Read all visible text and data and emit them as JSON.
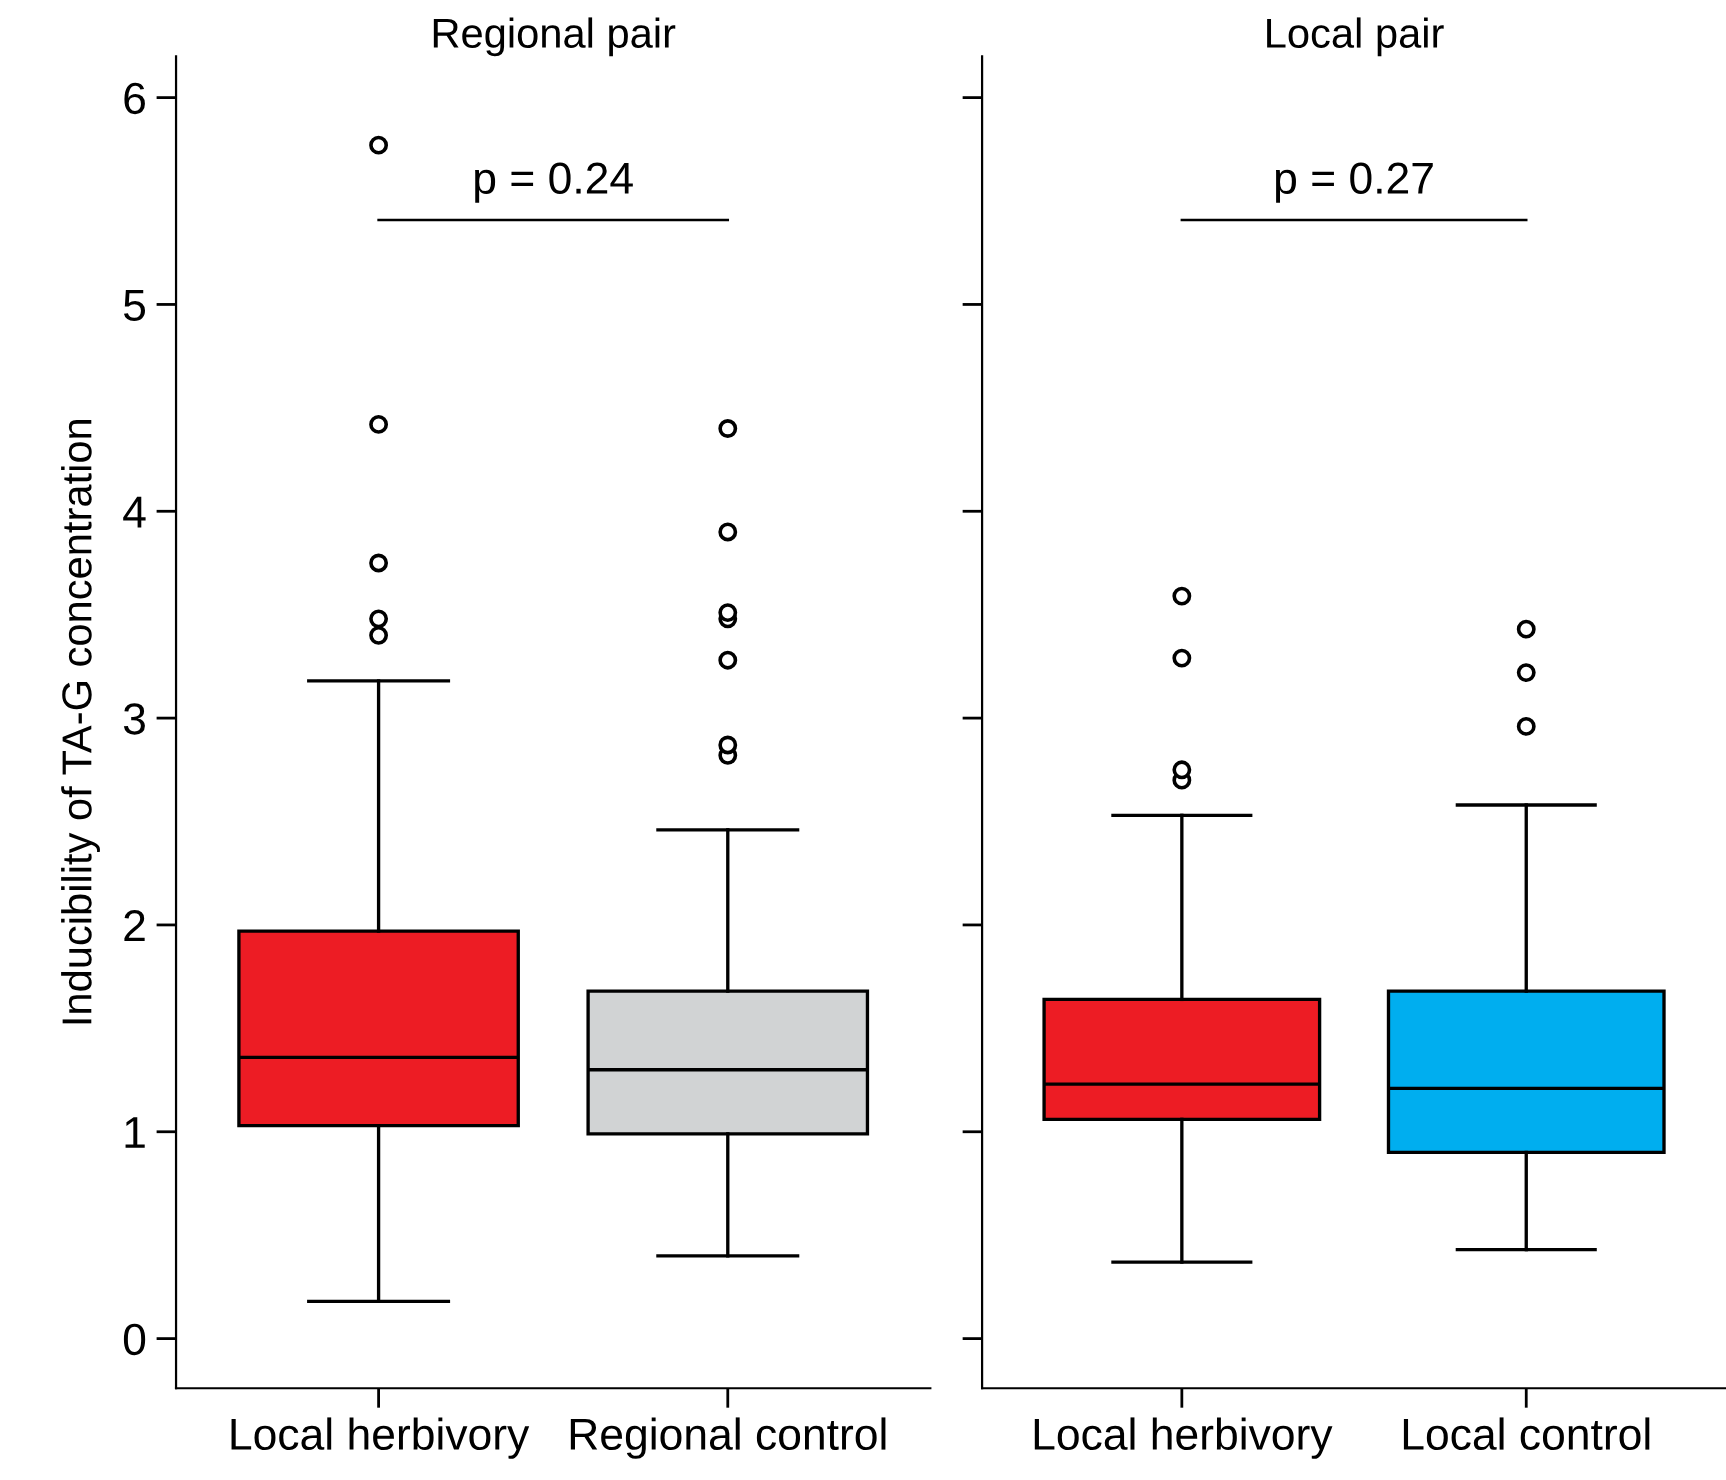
{
  "chart_data": [
    {
      "type": "box",
      "title": "Regional pair",
      "ylabel": "Inducibility of TA-G concentration",
      "categories": [
        "Local herbivory",
        "Regional control"
      ],
      "colors": [
        "#ed1c24",
        "#d1d3d4"
      ],
      "boxes": [
        {
          "low": 0.18,
          "q1": 1.03,
          "median": 1.36,
          "q3": 1.97,
          "high": 3.18,
          "outliers": [
            3.4,
            3.48,
            3.75,
            4.42,
            5.77
          ]
        },
        {
          "low": 0.4,
          "q1": 0.99,
          "median": 1.3,
          "q3": 1.68,
          "high": 2.46,
          "outliers": [
            2.82,
            2.87,
            3.28,
            3.48,
            3.51,
            3.9,
            4.4
          ]
        }
      ],
      "ylim": [
        -0.24,
        6.2
      ],
      "yticks": [
        0,
        1,
        2,
        3,
        4,
        5,
        6
      ],
      "annotations": [
        "p = 0.24"
      ],
      "grid": false,
      "legend": false
    },
    {
      "type": "box",
      "title": "Local pair",
      "categories": [
        "Local herbivory",
        "Local control"
      ],
      "colors": [
        "#ed1c24",
        "#00aeef"
      ],
      "boxes": [
        {
          "low": 0.37,
          "q1": 1.06,
          "median": 1.23,
          "q3": 1.64,
          "high": 2.53,
          "outliers": [
            2.7,
            2.75,
            3.29,
            3.59
          ]
        },
        {
          "low": 0.43,
          "q1": 0.9,
          "median": 1.21,
          "q3": 1.68,
          "high": 2.58,
          "outliers": [
            2.96,
            3.22,
            3.43
          ]
        }
      ],
      "ylim": [
        -0.24,
        6.2
      ],
      "yticks": [
        0,
        1,
        2,
        3,
        4,
        5,
        6
      ],
      "tick_labels": "x",
      "annotations": [
        "p = 0.27"
      ],
      "grid": false,
      "legend": false
    }
  ]
}
